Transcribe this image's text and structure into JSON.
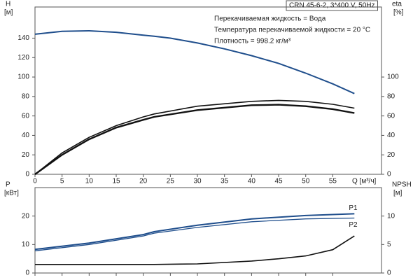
{
  "chart_data": [
    {
      "type": "line",
      "title": "CRN 45-6-2, 3*400 V, 50Hz",
      "annotations": [
        "Перекачиваемая жидкость = Вода",
        "Температура перекачиваемой жидкости = 20 °C",
        "Плотность = 998.2 кг/м³"
      ],
      "xlabel": "Q [м³/ч]",
      "ylabel": "H",
      "yunit": "[м]",
      "y2label": "eta",
      "y2unit": "[%]",
      "xlim": [
        0,
        64
      ],
      "xticks": [
        0,
        5,
        10,
        15,
        20,
        25,
        30,
        35,
        40,
        45,
        50,
        55
      ],
      "xtick_labels": true,
      "ylim": [
        0,
        172
      ],
      "yticks": [
        0,
        20,
        40,
        60,
        80,
        100,
        120,
        140
      ],
      "y2lim": [
        0,
        172
      ],
      "y2ticks": [
        0,
        20,
        40,
        60,
        80,
        100
      ],
      "series": [
        {
          "color": "#1f4e8c",
          "line_width": 2,
          "x": [
            0,
            5,
            10,
            15,
            20,
            22,
            25,
            30,
            35,
            40,
            45,
            50,
            55,
            59
          ],
          "values": [
            144,
            147,
            147.5,
            146,
            143,
            142,
            140,
            135,
            129,
            122,
            114,
            104,
            93,
            83
          ]
        },
        {
          "color": "#111111",
          "axis": "y2",
          "line_width": 1.6,
          "x": [
            0,
            5,
            10,
            15,
            20,
            22,
            30,
            40,
            45,
            50,
            55,
            59
          ],
          "values": [
            0,
            22,
            38,
            50,
            59,
            62,
            70,
            75,
            76,
            75,
            72,
            68
          ]
        },
        {
          "color": "#111111",
          "axis": "y2",
          "line_width": 2.4,
          "x": [
            0,
            5,
            10,
            15,
            20,
            22,
            30,
            40,
            45,
            50,
            55,
            59
          ],
          "values": [
            0,
            20,
            36,
            48,
            56,
            59,
            66,
            71,
            71.5,
            70,
            67,
            63
          ]
        }
      ]
    },
    {
      "type": "line",
      "ylabel": "P",
      "yunit": "[кВт]",
      "y2label": "NPSH",
      "y2unit": "[м]",
      "xlim": [
        0,
        64
      ],
      "xticks": [
        0,
        5,
        10,
        15,
        20,
        25,
        30,
        35,
        40,
        45,
        50,
        55
      ],
      "xtick_labels": false,
      "ylim": [
        0,
        30
      ],
      "yticks": [
        0,
        10,
        20
      ],
      "y2lim": [
        0,
        15
      ],
      "y2ticks": [
        0,
        5,
        10
      ],
      "series": [
        {
          "name": "P1",
          "color": "#1f4e8c",
          "line_width": 2,
          "x": [
            0,
            10,
            20,
            22,
            30,
            40,
            50,
            59
          ],
          "values": [
            8.3,
            10.5,
            13.5,
            14.5,
            16.8,
            19,
            20.2,
            20.8
          ]
        },
        {
          "name": "P2",
          "color": "#1f4e8c",
          "line_width": 1.3,
          "x": [
            0,
            10,
            20,
            22,
            30,
            40,
            50,
            59
          ],
          "values": [
            7.8,
            10,
            13,
            14,
            16,
            18,
            19,
            19.3
          ]
        },
        {
          "color": "#111111",
          "axis": "y2",
          "line_width": 1.6,
          "x": [
            0,
            22,
            30,
            40,
            45,
            50,
            55,
            59
          ],
          "values": [
            1.5,
            1.5,
            1.6,
            2.1,
            2.5,
            3,
            4.1,
            6.5
          ]
        }
      ]
    }
  ]
}
